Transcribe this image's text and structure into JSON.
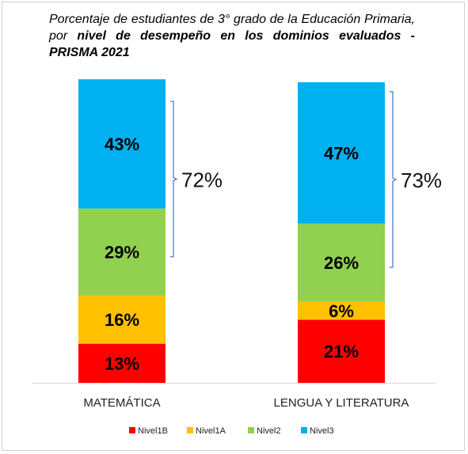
{
  "title": {
    "prefix": "Porcentaje de estudiantes de 3° grado de la Educación Primaria, por ",
    "bold": "nivel de desempeño en los dominios evaluados - PRISMA 2021"
  },
  "chart_data": {
    "type": "bar",
    "stacked": true,
    "categories": [
      "MATEMÁTICA",
      "LENGUA Y LITERATURA"
    ],
    "series": [
      {
        "name": "Nivel1B",
        "values": [
          13,
          21
        ],
        "color": "#ff0000"
      },
      {
        "name": "Nivel1A",
        "values": [
          16,
          6
        ],
        "color": "#ffc000"
      },
      {
        "name": "Nivel2",
        "values": [
          29,
          26
        ],
        "color": "#92d050"
      },
      {
        "name": "Nivel3",
        "values": [
          43,
          47
        ],
        "color": "#00b0f0"
      }
    ],
    "data_labels": [
      [
        "13%",
        "16%",
        "29%",
        "43%"
      ],
      [
        "21%",
        "6%",
        "26%",
        "47%"
      ]
    ],
    "bracket_labels": [
      "72%",
      "73%"
    ],
    "bracket_color": "#4472c4",
    "legend_position": "bottom",
    "ylim": [
      0,
      100
    ]
  }
}
